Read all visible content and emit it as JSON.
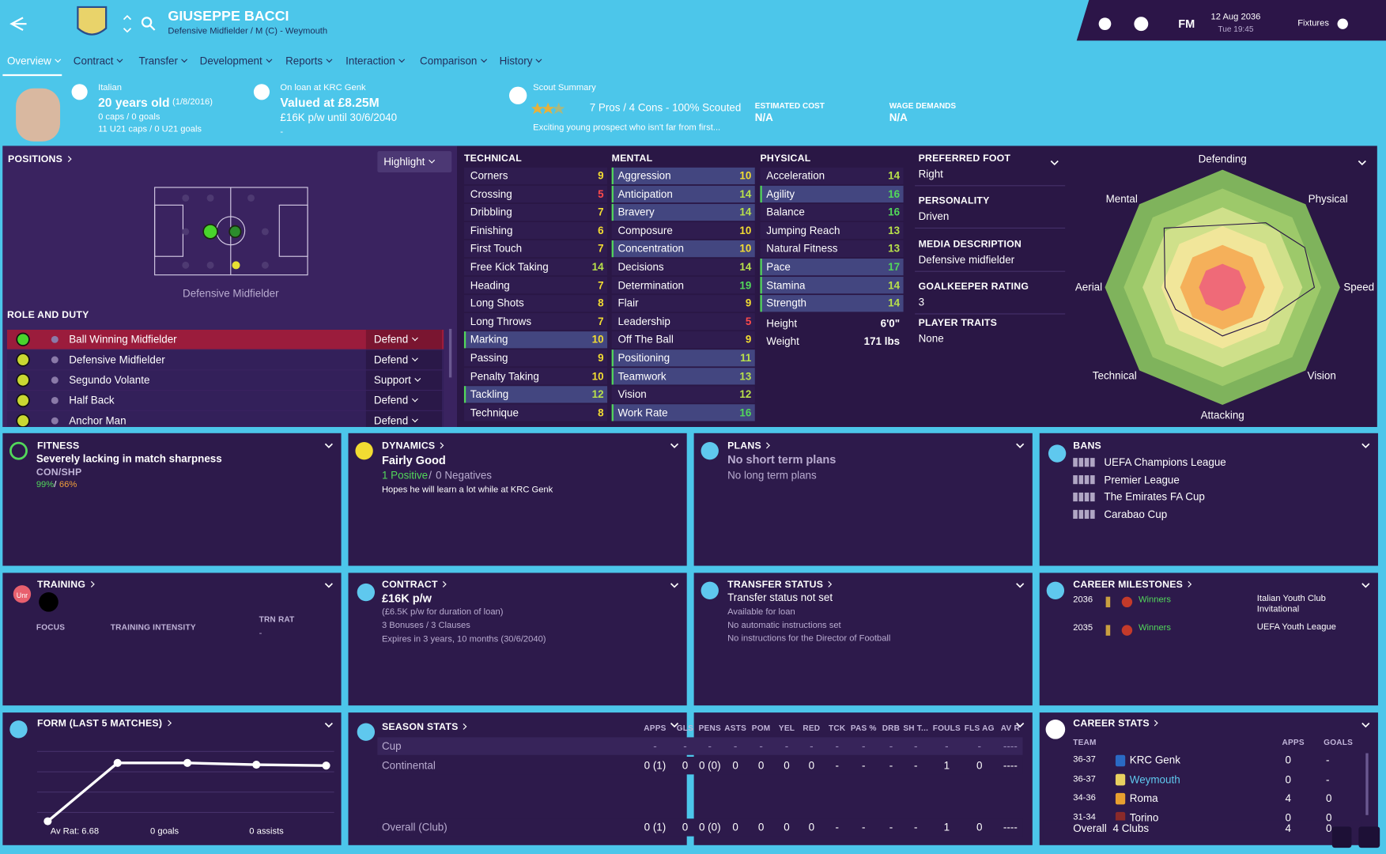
{
  "header": {
    "name": "GIUSEPPE BACCI",
    "subtitle": "Defensive Midfielder / M (C) - Weymouth",
    "fm": "FM",
    "date": "12 Aug 2036",
    "time": "Tue 19:45",
    "fixtures": "Fixtures"
  },
  "tabs": [
    "Overview",
    "Contract",
    "Transfer",
    "Development",
    "Reports",
    "Interaction",
    "Comparison",
    "History"
  ],
  "info": {
    "nationality": "Italian",
    "age": "20 years old",
    "dob": "(1/8/2016)",
    "caps": "0 caps / 0 goals",
    "u21": "11 U21 caps / 0 U21 goals",
    "loan": "On loan at KRC Genk",
    "value": "Valued at £8.25M",
    "wage": "£16K p/w until 30/6/2040",
    "loan_note": "-",
    "scout_title": "Scout Summary",
    "scout": "7 Pros / 4 Cons - 100% Scouted",
    "scout_text": "Exciting young prospect who isn't far from first...",
    "cost_label": "ESTIMATED COST",
    "cost": "N/A",
    "wage_label": "WAGE DEMANDS",
    "wage_demand": "N/A"
  },
  "positions": {
    "title": "POSITIONS",
    "highlight": "Highlight",
    "position": "Defensive Midfielder",
    "role_title": "ROLE AND DUTY",
    "roles": [
      {
        "role": "Ball Winning Midfielder",
        "duty": "Defend"
      },
      {
        "role": "Defensive Midfielder",
        "duty": "Defend"
      },
      {
        "role": "Segundo Volante",
        "duty": "Support"
      },
      {
        "role": "Half Back",
        "duty": "Defend"
      },
      {
        "role": "Anchor Man",
        "duty": "Defend"
      }
    ]
  },
  "attributes": {
    "groups": [
      {
        "title": "TECHNICAL",
        "rows": [
          {
            "name": "Corners",
            "value": 9
          },
          {
            "name": "Crossing",
            "value": 5
          },
          {
            "name": "Dribbling",
            "value": 7
          },
          {
            "name": "Finishing",
            "value": 6
          },
          {
            "name": "First Touch",
            "value": 7
          },
          {
            "name": "Free Kick Taking",
            "value": 14
          },
          {
            "name": "Heading",
            "value": 7
          },
          {
            "name": "Long Shots",
            "value": 8
          },
          {
            "name": "Long Throws",
            "value": 7
          },
          {
            "name": "Marking",
            "value": 10,
            "key": true
          },
          {
            "name": "Passing",
            "value": 9
          },
          {
            "name": "Penalty Taking",
            "value": 10
          },
          {
            "name": "Tackling",
            "value": 12,
            "key": true
          },
          {
            "name": "Technique",
            "value": 8
          }
        ]
      },
      {
        "title": "MENTAL",
        "rows": [
          {
            "name": "Aggression",
            "value": 10,
            "key": true
          },
          {
            "name": "Anticipation",
            "value": 14,
            "key": true
          },
          {
            "name": "Bravery",
            "value": 14,
            "key": true
          },
          {
            "name": "Composure",
            "value": 10
          },
          {
            "name": "Concentration",
            "value": 10,
            "key": true
          },
          {
            "name": "Decisions",
            "value": 14
          },
          {
            "name": "Determination",
            "value": 19
          },
          {
            "name": "Flair",
            "value": 9
          },
          {
            "name": "Leadership",
            "value": 5
          },
          {
            "name": "Off The Ball",
            "value": 9
          },
          {
            "name": "Positioning",
            "value": 11,
            "key": true
          },
          {
            "name": "Teamwork",
            "value": 13,
            "key": true
          },
          {
            "name": "Vision",
            "value": 12
          },
          {
            "name": "Work Rate",
            "value": 16,
            "key": true
          }
        ]
      },
      {
        "title": "PHYSICAL",
        "rows": [
          {
            "name": "Acceleration",
            "value": 14
          },
          {
            "name": "Agility",
            "value": 16,
            "key": true
          },
          {
            "name": "Balance",
            "value": 16
          },
          {
            "name": "Jumping Reach",
            "value": 13
          },
          {
            "name": "Natural Fitness",
            "value": 13
          },
          {
            "name": "Pace",
            "value": 17,
            "key": true
          },
          {
            "name": "Stamina",
            "value": 14,
            "key": true
          },
          {
            "name": "Strength",
            "value": 14,
            "key": true
          }
        ]
      }
    ],
    "height_label": "Height",
    "height": "6'0\"",
    "weight_label": "Weight",
    "weight": "171 lbs"
  },
  "details": [
    {
      "label": "PREFERRED FOOT",
      "value": "Right"
    },
    {
      "label": "PERSONALITY",
      "value": "Driven"
    },
    {
      "label": "MEDIA DESCRIPTION",
      "value": "Defensive midfielder"
    },
    {
      "label": "GOALKEEPER RATING",
      "value": "3"
    },
    {
      "label": "PLAYER TRAITS",
      "value": "None"
    }
  ],
  "radar": [
    "Defending",
    "Physical",
    "Speed",
    "Vision",
    "Attacking",
    "Technical",
    "Aerial",
    "Mental"
  ],
  "fitness": {
    "title": "FITNESS",
    "status": "Severely lacking in match sharpness",
    "label": "CON/SHP",
    "con": "99%",
    "sep": "/",
    "shp": "66%"
  },
  "dynamics": {
    "title": "DYNAMICS",
    "rating": "Fairly Good",
    "positive": "1 Positive",
    "sep": "/",
    "negative": "0 Negatives",
    "text": "Hopes he will learn a lot while at KRC Genk"
  },
  "plans": {
    "title": "PLANS",
    "short": "No short term plans",
    "long": "No long term plans"
  },
  "bans": {
    "title": "BANS",
    "items": [
      "UEFA Champions League",
      "Premier League",
      "The Emirates FA Cup",
      "Carabao Cup"
    ]
  },
  "training": {
    "title": "TRAINING",
    "badge": "Unr",
    "focus": "FOCUS",
    "intensity": "TRAINING INTENSITY",
    "trn_label": "TRN RAT",
    "trn": "-"
  },
  "contract": {
    "title": "CONTRACT",
    "wage": "£16K p/w",
    "loan": "(£6.5K p/w for duration of loan)",
    "bonuses": "3 Bonuses / 3 Clauses",
    "expires": "Expires in 3 years, 10 months (30/6/2040)"
  },
  "transfer": {
    "title": "TRANSFER STATUS",
    "status": "Transfer status not set",
    "lines": [
      "Available for loan",
      "No automatic instructions set",
      "No instructions for the Director of Football"
    ]
  },
  "milestones": {
    "title": "CAREER MILESTONES",
    "items": [
      {
        "year": "2036",
        "result": "Winners",
        "competition": "Italian Youth Club Invitational"
      },
      {
        "year": "2035",
        "result": "Winners",
        "competition": "UEFA Youth League"
      }
    ]
  },
  "form": {
    "title": "FORM (LAST 5 MATCHES)",
    "rating": "Av Rat: 6.68",
    "goals": "0 goals",
    "assists": "0 assists"
  },
  "season": {
    "title": "SEASON STATS",
    "columns": [
      "APPS",
      "GLS",
      "PENS",
      "ASTS",
      "POM",
      "YEL",
      "RED",
      "TCK",
      "PAS %",
      "DRB",
      "SH T...",
      "FOULS",
      "FLS AG",
      "AV R"
    ],
    "rows": [
      {
        "label": "Cup",
        "cells": [
          "-",
          "-",
          "-",
          "-",
          "-",
          "-",
          "-",
          "-",
          "-",
          "-",
          "-",
          "-",
          "-",
          "----"
        ]
      },
      {
        "label": "Continental",
        "cells": [
          "0 (1)",
          "0",
          "0 (0)",
          "0",
          "0",
          "0",
          "0",
          "-",
          "-",
          "-",
          "-",
          "1",
          "0",
          "----"
        ]
      },
      {
        "label": "Overall (Club)",
        "cells": [
          "0 (1)",
          "0",
          "0 (0)",
          "0",
          "0",
          "0",
          "0",
          "-",
          "-",
          "-",
          "-",
          "1",
          "0",
          "----"
        ]
      }
    ]
  },
  "career": {
    "title": "CAREER STATS",
    "columns": [
      "TEAM",
      "APPS",
      "GOALS"
    ],
    "rows": [
      {
        "season": "36-37",
        "team": "KRC Genk",
        "apps": "0",
        "goals": "-"
      },
      {
        "season": "36-37",
        "team": "Weymouth",
        "apps": "0",
        "goals": "-"
      },
      {
        "season": "34-36",
        "team": "Roma",
        "apps": "4",
        "goals": "0"
      },
      {
        "season": "31-34",
        "team": "Torino",
        "apps": "0",
        "goals": "0"
      }
    ],
    "overall": {
      "label": "Overall",
      "clubs": "4 Clubs",
      "apps": "4",
      "goals": "0"
    }
  }
}
